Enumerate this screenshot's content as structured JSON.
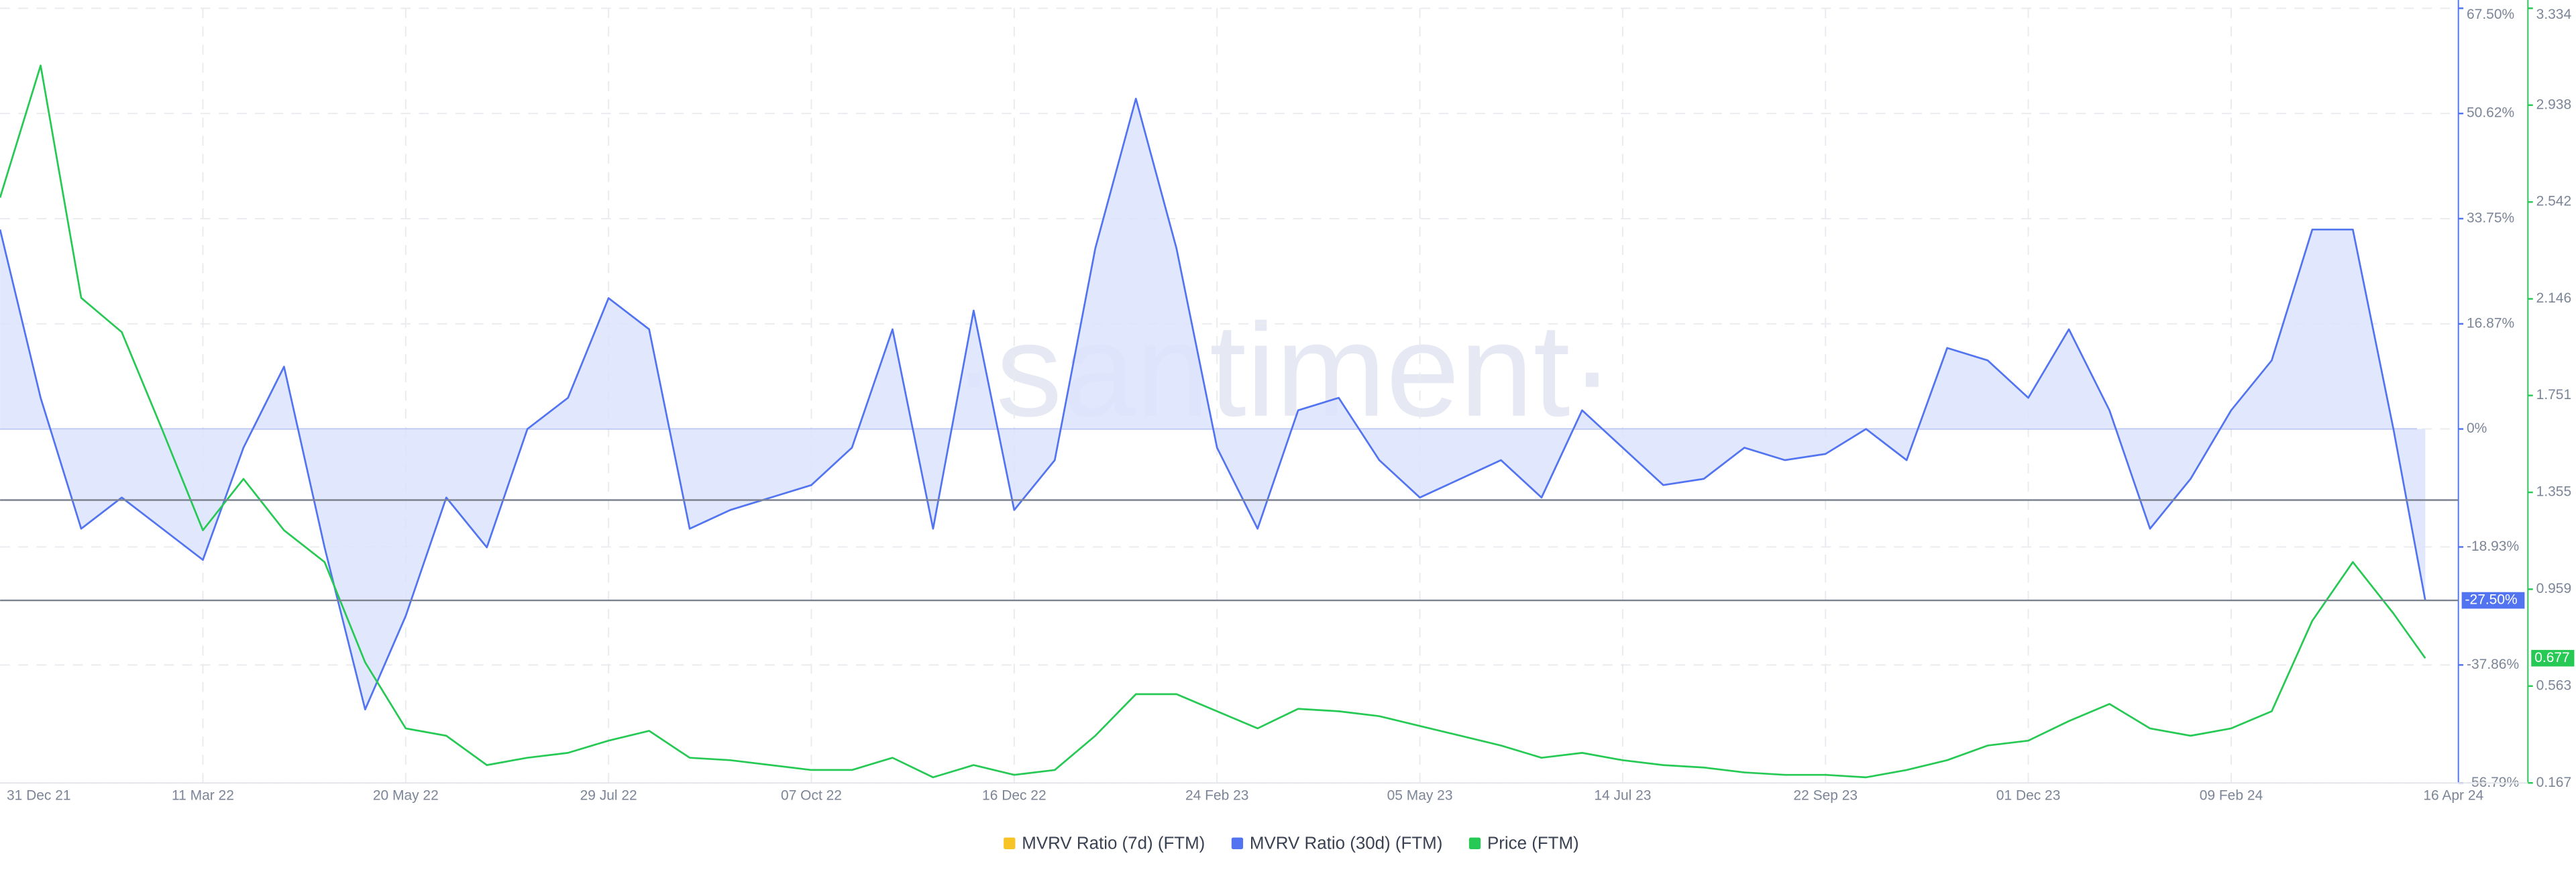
{
  "chart_data": {
    "type": "line",
    "watermark": "·santiment·",
    "x": [
      "2021-12-31",
      "2022-01-14",
      "2022-01-28",
      "2022-02-11",
      "2022-02-25",
      "2022-03-11",
      "2022-03-25",
      "2022-04-08",
      "2022-04-22",
      "2022-05-06",
      "2022-05-20",
      "2022-06-03",
      "2022-06-17",
      "2022-07-01",
      "2022-07-15",
      "2022-07-29",
      "2022-08-12",
      "2022-08-26",
      "2022-09-09",
      "2022-09-23",
      "2022-10-07",
      "2022-10-21",
      "2022-11-04",
      "2022-11-18",
      "2022-12-02",
      "2022-12-16",
      "2022-12-30",
      "2023-01-13",
      "2023-01-27",
      "2023-02-10",
      "2023-02-24",
      "2023-03-10",
      "2023-03-24",
      "2023-04-07",
      "2023-04-21",
      "2023-05-05",
      "2023-05-19",
      "2023-06-02",
      "2023-06-16",
      "2023-06-30",
      "2023-07-14",
      "2023-07-28",
      "2023-08-11",
      "2023-08-25",
      "2023-09-08",
      "2023-09-22",
      "2023-10-06",
      "2023-10-20",
      "2023-11-03",
      "2023-11-17",
      "2023-12-01",
      "2023-12-15",
      "2023-12-29",
      "2024-01-12",
      "2024-01-26",
      "2024-02-09",
      "2024-02-23",
      "2024-03-08",
      "2024-03-22",
      "2024-04-05",
      "2024-04-16"
    ],
    "xlim": [
      "2021-12-31",
      "2024-04-16"
    ],
    "xticks": [
      {
        "value": "2021-12-31",
        "label": "31 Dec 21"
      },
      {
        "value": "2022-03-11",
        "label": "11 Mar 22"
      },
      {
        "value": "2022-05-20",
        "label": "20 May 22"
      },
      {
        "value": "2022-07-29",
        "label": "29 Jul 22"
      },
      {
        "value": "2022-10-07",
        "label": "07 Oct 22"
      },
      {
        "value": "2022-12-16",
        "label": "16 Dec 22"
      },
      {
        "value": "2023-02-24",
        "label": "24 Feb 23"
      },
      {
        "value": "2023-05-05",
        "label": "05 May 23"
      },
      {
        "value": "2023-07-14",
        "label": "14 Jul 23"
      },
      {
        "value": "2023-09-22",
        "label": "22 Sep 23"
      },
      {
        "value": "2023-12-01",
        "label": "01 Dec 23"
      },
      {
        "value": "2024-02-09",
        "label": "09 Feb 24"
      },
      {
        "value": "2024-04-16",
        "label": "16 Apr 24"
      }
    ],
    "ylim": [
      -56.79,
      67.5
    ],
    "yticks": [
      {
        "value": 67.5,
        "label": "67.50%"
      },
      {
        "value": 50.62,
        "label": "50.62%"
      },
      {
        "value": 33.75,
        "label": "33.75%"
      },
      {
        "value": 16.87,
        "label": "16.87%"
      },
      {
        "value": 0,
        "label": "0%"
      },
      {
        "value": -18.93,
        "label": "-18.93%"
      },
      {
        "value": -37.86,
        "label": "-37.86%"
      },
      {
        "value": -56.79,
        "label": "-56.79%"
      }
    ],
    "y2lim": [
      0.167,
      3.334
    ],
    "y2ticks": [
      3.334,
      2.938,
      2.542,
      2.146,
      1.751,
      1.355,
      0.959,
      0.563,
      0.167
    ],
    "reference_lines": [
      {
        "value": -11.4
      },
      {
        "value": -27.5,
        "label": "-27.50%"
      }
    ],
    "grid": true,
    "legend": "bottom",
    "series": [
      {
        "name": "MVRV Ratio (7d) (FTM)",
        "color": "#f7c325",
        "values": [
          null,
          null,
          null,
          null,
          null,
          null,
          null,
          null,
          null,
          null,
          null,
          null,
          null,
          null,
          null,
          null,
          null,
          null,
          null,
          null,
          null,
          null,
          null,
          null,
          null,
          null,
          null,
          null,
          null,
          null,
          null,
          null,
          null,
          null,
          null,
          null,
          null,
          null,
          null,
          null,
          null,
          null,
          null,
          null,
          null,
          null,
          null,
          null,
          null,
          null,
          null,
          null,
          null,
          null,
          null,
          null,
          null,
          null,
          null,
          null,
          null
        ]
      },
      {
        "name": "MVRV Ratio (30d) (FTM)",
        "color": "#5274f0",
        "fill": "#dce3fb",
        "values": [
          32,
          5,
          -16,
          -11,
          -16,
          -21,
          -3,
          10,
          -19,
          -45,
          -30,
          -11,
          -19,
          0,
          5,
          21,
          16,
          -16,
          -13,
          -11,
          -9,
          -3,
          16,
          -16,
          19,
          -13,
          -5,
          29,
          53,
          29,
          -3,
          -16,
          3,
          5,
          -5,
          -11,
          -8,
          -5,
          -11,
          3,
          -3,
          -9,
          -8,
          -3,
          -5,
          -4,
          0,
          -5,
          13,
          11,
          5,
          16,
          3,
          -16,
          -8,
          3,
          11,
          32,
          32,
          0,
          -27.5
        ]
      },
      {
        "name": "Price (FTM)",
        "color": "#26c953",
        "axis": "y2",
        "values": [
          2.56,
          3.1,
          2.15,
          2.01,
          1.61,
          1.2,
          1.41,
          1.2,
          1.07,
          0.66,
          0.39,
          0.36,
          0.24,
          0.27,
          0.29,
          0.34,
          0.38,
          0.27,
          0.26,
          0.24,
          0.22,
          0.22,
          0.27,
          0.19,
          0.24,
          0.2,
          0.22,
          0.36,
          0.53,
          0.53,
          0.46,
          0.39,
          0.47,
          0.46,
          0.44,
          0.4,
          0.36,
          0.32,
          0.27,
          0.29,
          0.26,
          0.24,
          0.23,
          0.21,
          0.2,
          0.2,
          0.19,
          0.22,
          0.26,
          0.32,
          0.34,
          0.42,
          0.49,
          0.39,
          0.36,
          0.39,
          0.46,
          0.83,
          1.07,
          0.86,
          0.677
        ]
      }
    ]
  }
}
